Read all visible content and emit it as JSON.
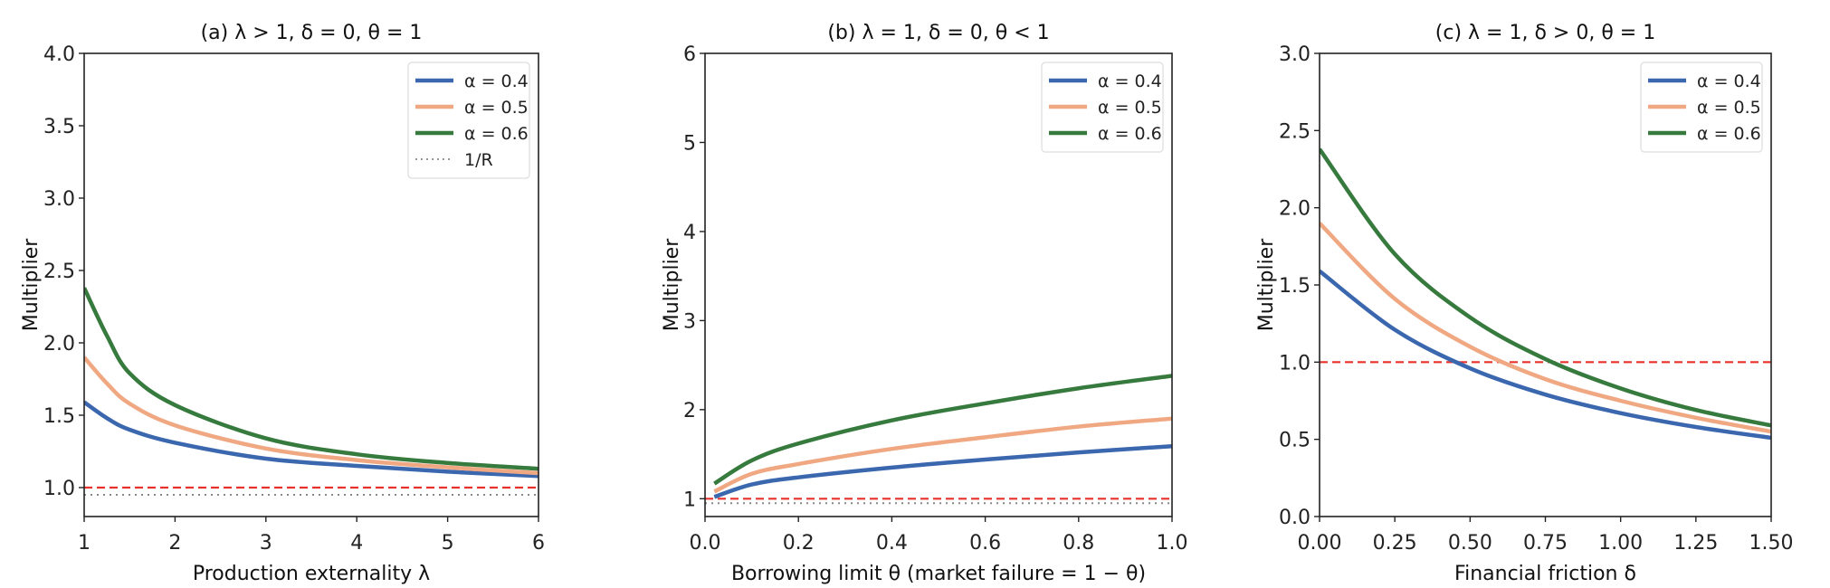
{
  "chart_data": [
    {
      "type": "line",
      "title": "(a) λ > 1, δ = 0, θ = 1",
      "xlabel": "Production externality λ",
      "ylabel": "Multiplier",
      "xlim": [
        1,
        6
      ],
      "ylim": [
        0.8,
        4.0
      ],
      "xticks": [
        1,
        2,
        3,
        4,
        5,
        6
      ],
      "xtick_labels": [
        "1",
        "2",
        "3",
        "4",
        "5",
        "6"
      ],
      "yticks": [
        1.0,
        1.5,
        2.0,
        2.5,
        3.0,
        3.5,
        4.0
      ],
      "ytick_labels": [
        "1.0",
        "1.5",
        "2.0",
        "2.5",
        "3.0",
        "3.5",
        "4.0"
      ],
      "grid": false,
      "legend_position": "top-right",
      "series": [
        {
          "name": "α = 0.4",
          "color": "#3a67ae",
          "x": [
            1,
            1.25,
            1.5,
            2,
            3,
            4,
            5,
            6
          ],
          "y": [
            1.59,
            1.48,
            1.4,
            1.31,
            1.2,
            1.15,
            1.11,
            1.08
          ]
        },
        {
          "name": "α = 0.5",
          "color": "#f0a882",
          "x": [
            1,
            1.25,
            1.5,
            2,
            3,
            4,
            5,
            6
          ],
          "y": [
            1.9,
            1.72,
            1.58,
            1.43,
            1.27,
            1.19,
            1.14,
            1.1
          ]
        },
        {
          "name": "α = 0.6",
          "color": "#367a3e",
          "x": [
            1,
            1.25,
            1.5,
            2,
            3,
            4,
            5,
            6
          ],
          "y": [
            2.38,
            2.05,
            1.79,
            1.57,
            1.34,
            1.23,
            1.17,
            1.13
          ]
        }
      ],
      "reference_lines": [
        {
          "y": 1.0,
          "style": "dashed",
          "color": "#e8312a"
        },
        {
          "y": 0.95,
          "style": "dotted",
          "color": "#888888",
          "name": "1/R"
        }
      ]
    },
    {
      "type": "line",
      "title": "(b) λ = 1, δ = 0, θ < 1",
      "xlabel": "Borrowing limit θ  (market failure = 1 − θ)",
      "ylabel": "Multiplier",
      "xlim": [
        0.0,
        1.0
      ],
      "ylim": [
        0.8,
        6
      ],
      "xticks": [
        0.0,
        0.2,
        0.4,
        0.6,
        0.8,
        1.0
      ],
      "xtick_labels": [
        "0.0",
        "0.2",
        "0.4",
        "0.6",
        "0.8",
        "1.0"
      ],
      "yticks": [
        1,
        2,
        3,
        4,
        5,
        6
      ],
      "ytick_labels": [
        "1",
        "2",
        "3",
        "4",
        "5",
        "6"
      ],
      "grid": false,
      "legend_position": "top-right",
      "series": [
        {
          "name": "α = 0.4",
          "color": "#3a67ae",
          "x": [
            0.02,
            0.1,
            0.2,
            0.4,
            0.6,
            0.8,
            1.0
          ],
          "y": [
            1.02,
            1.16,
            1.24,
            1.35,
            1.44,
            1.52,
            1.59
          ]
        },
        {
          "name": "α = 0.5",
          "color": "#f0a882",
          "x": [
            0.02,
            0.1,
            0.2,
            0.4,
            0.6,
            0.8,
            1.0
          ],
          "y": [
            1.08,
            1.28,
            1.39,
            1.56,
            1.69,
            1.81,
            1.9
          ]
        },
        {
          "name": "α = 0.6",
          "color": "#367a3e",
          "x": [
            0.02,
            0.1,
            0.2,
            0.4,
            0.6,
            0.8,
            1.0
          ],
          "y": [
            1.17,
            1.43,
            1.62,
            1.88,
            2.07,
            2.24,
            2.38
          ]
        }
      ],
      "reference_lines": [
        {
          "y": 1.0,
          "style": "dashed",
          "color": "#e8312a"
        },
        {
          "y": 0.95,
          "style": "dotted",
          "color": "#888888"
        }
      ]
    },
    {
      "type": "line",
      "title": "(c) λ = 1, δ > 0, θ = 1",
      "xlabel": "Financial friction δ",
      "ylabel": "Multiplier",
      "xlim": [
        0.0,
        1.5
      ],
      "ylim": [
        0.0,
        3.0
      ],
      "xticks": [
        0.0,
        0.25,
        0.5,
        0.75,
        1.0,
        1.25,
        1.5
      ],
      "xtick_labels": [
        "0.00",
        "0.25",
        "0.50",
        "0.75",
        "1.00",
        "1.25",
        "1.50"
      ],
      "yticks": [
        0.0,
        0.5,
        1.0,
        1.5,
        2.0,
        2.5,
        3.0
      ],
      "ytick_labels": [
        "0.0",
        "0.5",
        "1.0",
        "1.5",
        "2.0",
        "2.5",
        "3.0"
      ],
      "grid": false,
      "legend_position": "top-right",
      "series": [
        {
          "name": "α = 0.4",
          "color": "#3a67ae",
          "x": [
            0,
            0.25,
            0.5,
            0.75,
            1.0,
            1.25,
            1.5
          ],
          "y": [
            1.59,
            1.21,
            0.96,
            0.79,
            0.67,
            0.58,
            0.51
          ]
        },
        {
          "name": "α = 0.5",
          "color": "#f0a882",
          "x": [
            0,
            0.25,
            0.5,
            0.75,
            1.0,
            1.25,
            1.5
          ],
          "y": [
            1.9,
            1.41,
            1.1,
            0.89,
            0.75,
            0.64,
            0.55
          ]
        },
        {
          "name": "α = 0.6",
          "color": "#367a3e",
          "x": [
            0,
            0.25,
            0.5,
            0.75,
            1.0,
            1.25,
            1.5
          ],
          "y": [
            2.38,
            1.7,
            1.29,
            1.02,
            0.83,
            0.69,
            0.59
          ]
        }
      ],
      "reference_lines": [
        {
          "y": 1.0,
          "style": "dashed",
          "color": "#e8312a"
        }
      ]
    }
  ]
}
